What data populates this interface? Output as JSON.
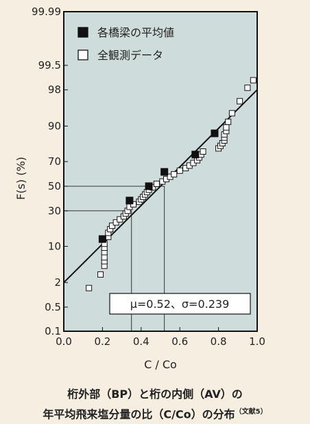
{
  "chart_data": {
    "type": "scatter",
    "xlabel": "C / Co",
    "ylabel": "F(s) (%)",
    "xlim": [
      0.0,
      1.0
    ],
    "xticks": [
      0.0,
      0.2,
      0.4,
      0.6,
      0.8,
      1.0
    ],
    "xtick_labels": [
      "0.0",
      "0.2",
      "0.4",
      "0.6",
      "0.8",
      "1.0"
    ],
    "yscale": "normal-probability",
    "yticks": [
      0.1,
      0.5,
      2,
      10,
      30,
      50,
      70,
      90,
      98,
      99.5,
      99.99
    ],
    "ytick_labels": [
      "0.1",
      "0.5",
      "2",
      "10",
      "30",
      "50",
      "70",
      "90",
      "98",
      "99.5",
      "99.99"
    ],
    "series": [
      {
        "name": "各橋梁の平均値",
        "marker": "filled-square",
        "points": [
          [
            0.2,
            13
          ],
          [
            0.34,
            38
          ],
          [
            0.44,
            50
          ],
          [
            0.52,
            62
          ],
          [
            0.68,
            75
          ],
          [
            0.78,
            87
          ]
        ]
      },
      {
        "name": "全観測データ",
        "marker": "open-square",
        "points": [
          [
            0.13,
            1.5
          ],
          [
            0.19,
            3
          ],
          [
            0.21,
            4.5
          ],
          [
            0.21,
            5.5
          ],
          [
            0.21,
            6.5
          ],
          [
            0.21,
            8
          ],
          [
            0.21,
            9.5
          ],
          [
            0.21,
            11
          ],
          [
            0.23,
            14
          ],
          [
            0.23,
            16
          ],
          [
            0.24,
            18
          ],
          [
            0.25,
            20
          ],
          [
            0.27,
            22
          ],
          [
            0.29,
            24
          ],
          [
            0.31,
            26
          ],
          [
            0.32,
            28
          ],
          [
            0.33,
            30
          ],
          [
            0.34,
            33
          ],
          [
            0.36,
            35
          ],
          [
            0.39,
            37
          ],
          [
            0.4,
            39
          ],
          [
            0.41,
            41
          ],
          [
            0.42,
            43
          ],
          [
            0.43,
            45
          ],
          [
            0.44,
            47
          ],
          [
            0.46,
            49
          ],
          [
            0.48,
            52
          ],
          [
            0.51,
            54
          ],
          [
            0.53,
            56
          ],
          [
            0.55,
            58
          ],
          [
            0.57,
            60
          ],
          [
            0.6,
            63
          ],
          [
            0.63,
            65
          ],
          [
            0.65,
            67
          ],
          [
            0.67,
            69
          ],
          [
            0.69,
            71
          ],
          [
            0.7,
            73
          ],
          [
            0.71,
            75
          ],
          [
            0.72,
            77
          ],
          [
            0.8,
            79
          ],
          [
            0.81,
            80.5
          ],
          [
            0.82,
            82
          ],
          [
            0.83,
            83.5
          ],
          [
            0.83,
            85
          ],
          [
            0.83,
            86.5
          ],
          [
            0.84,
            88
          ],
          [
            0.84,
            89.5
          ],
          [
            0.85,
            91.5
          ],
          [
            0.87,
            94
          ],
          [
            0.91,
            96.5
          ],
          [
            0.95,
            98.2
          ],
          [
            0.98,
            98.8
          ]
        ]
      }
    ],
    "fit_line": {
      "x": [
        0.0,
        1.0
      ],
      "y": [
        2,
        98
      ]
    },
    "reference_lines": [
      {
        "x": 0.35,
        "y": 30
      },
      {
        "x": 0.52,
        "y": 50
      }
    ],
    "annotation": "μ=0.52、σ=0.239",
    "legend_position": "top-left",
    "grid": false
  },
  "caption": {
    "line1": "桁外部（BP）と桁の内側（AV）の",
    "line2": "年平均飛来塩分量の比（C/Co）の分布",
    "ref": "（文献5）"
  }
}
